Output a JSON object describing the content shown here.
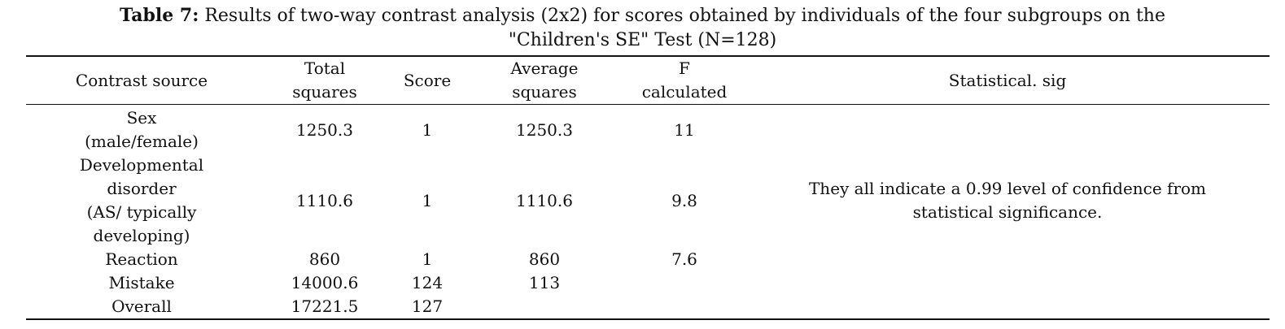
{
  "caption": {
    "label": "Table 7:",
    "line1": "Results of two-way contrast analysis (2x2) for scores obtained by individuals of the four subgroups on the",
    "line2": "\"Children's SE\" Test (N=128)"
  },
  "table": {
    "headers": {
      "contrast_source": "Contrast source",
      "total_squares": [
        "Total",
        "squares"
      ],
      "score": "Score",
      "average_squares": [
        "Average",
        "squares"
      ],
      "f_calculated": [
        "F",
        "calculated"
      ],
      "statistical_sig": "Statistical. sig"
    },
    "rows": [
      {
        "source": [
          "Sex",
          "(male/female)"
        ],
        "total_squares": "1250.3",
        "score": "1",
        "average_squares": "1250.3",
        "f_calculated": "11"
      },
      {
        "source": [
          "Developmental",
          "disorder",
          "(AS/ typically",
          "developing)"
        ],
        "total_squares": "1110.6",
        "score": "1",
        "average_squares": "1110.6",
        "f_calculated": "9.8"
      },
      {
        "source": [
          "Reaction"
        ],
        "total_squares": "860",
        "score": "1",
        "average_squares": "860",
        "f_calculated": "7.6"
      },
      {
        "source": [
          "Mistake"
        ],
        "total_squares": "14000.6",
        "score": "124",
        "average_squares": "113",
        "f_calculated": ""
      },
      {
        "source": [
          "Overall"
        ],
        "total_squares": "17221.5",
        "score": "127",
        "average_squares": "",
        "f_calculated": ""
      }
    ],
    "significance_note": [
      "They all indicate a 0.99 level of confidence from",
      "statistical significance."
    ]
  }
}
